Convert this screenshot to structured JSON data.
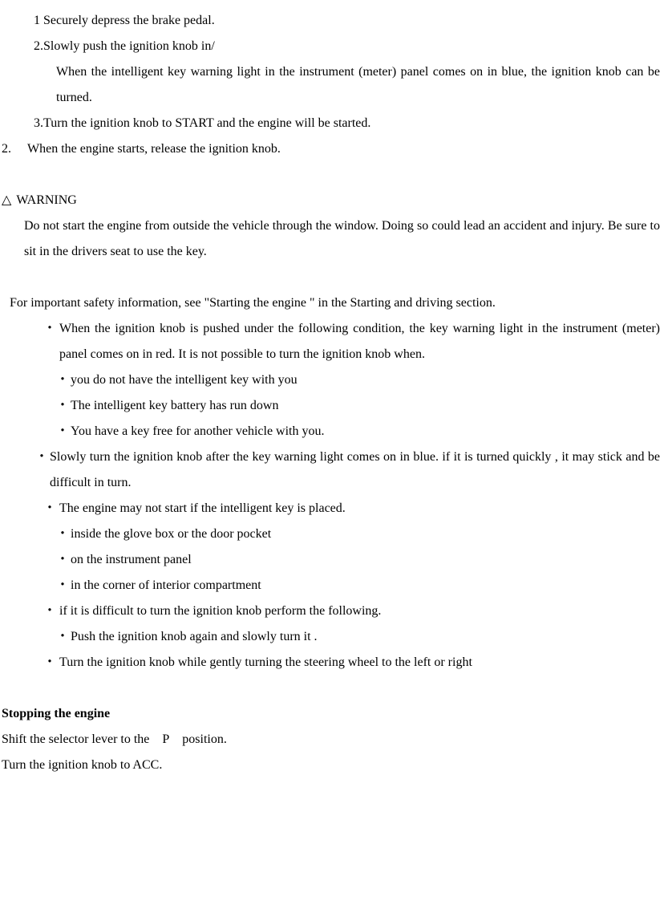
{
  "steps": {
    "step1": "1 Securely depress the brake pedal.",
    "step2": "2.Slowly push the ignition knob in/",
    "step2_detail": "When the intelligent key warning light in the instrument (meter) panel comes on in blue, the ignition knob can be turned.",
    "step3": "3.Turn the ignition knob to START and the engine will be started.",
    "mainStep2_num": "2.",
    "mainStep2": "When the engine starts, release the ignition knob."
  },
  "warning": {
    "symbol": "△",
    "label": "WARNING",
    "body": "Do not start the engine from outside the vehicle through the window. Doing so could lead an accident and injury. Be sure to sit in the drivers seat to use the key."
  },
  "safetyPara": "For important safety information, see \"Starting the engine \" in the Starting and driving section.",
  "bullets": {
    "b1": "When the ignition knob is pushed under the following condition, the key warning light in the instrument (meter) panel comes on in red. It is not possible to turn the ignition knob when.",
    "b1_sub1": "you do not have the intelligent key with you",
    "b1_sub2": "The intelligent key battery has run down",
    "b1_sub3": "You have a key free for another vehicle with you.",
    "b2": "Slowly turn the ignition knob after the key warning light comes on in blue. if it is turned quickly , it may stick and be difficult in turn.",
    "b3": "The engine may not start if the intelligent key is placed.",
    "b3_sub1": "inside the glove box or the door pocket",
    "b3_sub2": "on the instrument panel",
    "b3_sub3": "in the corner of interior compartment",
    "b4": "if it is difficult to turn the ignition knob perform the following.",
    "b4_sub1": "Push the ignition knob again and slowly turn it .",
    "b5": "Turn the ignition knob while gently turning the steering wheel to the left or right"
  },
  "stopping": {
    "heading": "Stopping the engine",
    "line1": "Shift the selector lever to the P position.",
    "line2": "Turn the ignition knob to ACC."
  },
  "bulletMark": "・"
}
